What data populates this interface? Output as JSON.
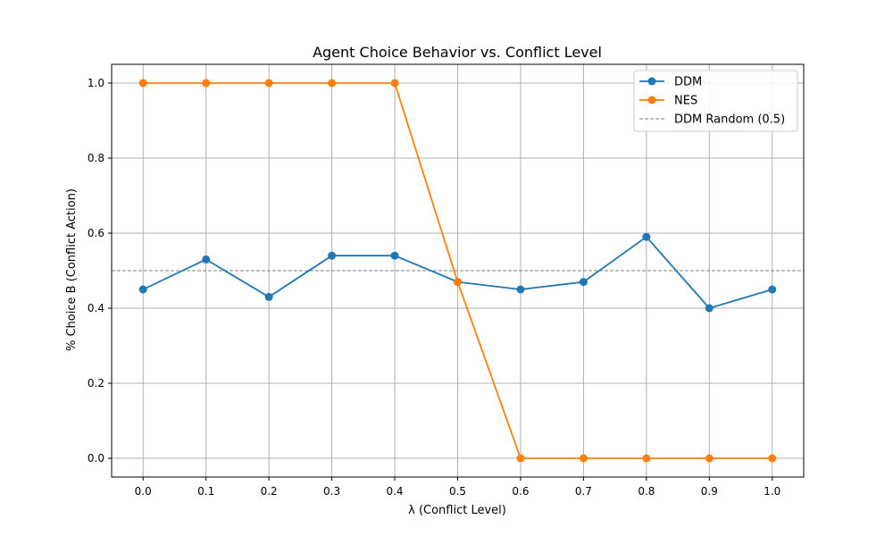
{
  "chart_data": {
    "type": "line",
    "title": "Agent Choice Behavior vs. Conflict Level",
    "xlabel": "λ (Conflict Level)",
    "ylabel": "% Choice B (Conflict Action)",
    "x": [
      0.0,
      0.1,
      0.2,
      0.3,
      0.4,
      0.5,
      0.6,
      0.7,
      0.8,
      0.9,
      1.0
    ],
    "xlim": [
      -0.05,
      1.05
    ],
    "ylim": [
      -0.05,
      1.05
    ],
    "xticks": [
      "0.0",
      "0.1",
      "0.2",
      "0.3",
      "0.4",
      "0.5",
      "0.6",
      "0.7",
      "0.8",
      "0.9",
      "1.0"
    ],
    "yticks": [
      "0.0",
      "0.2",
      "0.4",
      "0.6",
      "0.8",
      "1.0"
    ],
    "ytick_values": [
      0.0,
      0.2,
      0.4,
      0.6,
      0.8,
      1.0
    ],
    "grid": true,
    "legend_position": "top-right",
    "series": [
      {
        "name": "DDM",
        "color": "#1f77b4",
        "values": [
          0.45,
          0.53,
          0.43,
          0.54,
          0.54,
          0.47,
          0.45,
          0.47,
          0.59,
          0.4,
          0.45
        ]
      },
      {
        "name": "NES",
        "color": "#ff7f0e",
        "values": [
          1.0,
          1.0,
          1.0,
          1.0,
          1.0,
          0.47,
          0.0,
          0.0,
          0.0,
          0.0,
          0.0
        ]
      }
    ],
    "reference_line": {
      "name": "DDM Random (0.5)",
      "y": 0.5,
      "color": "#808080",
      "style": "dashed"
    }
  }
}
